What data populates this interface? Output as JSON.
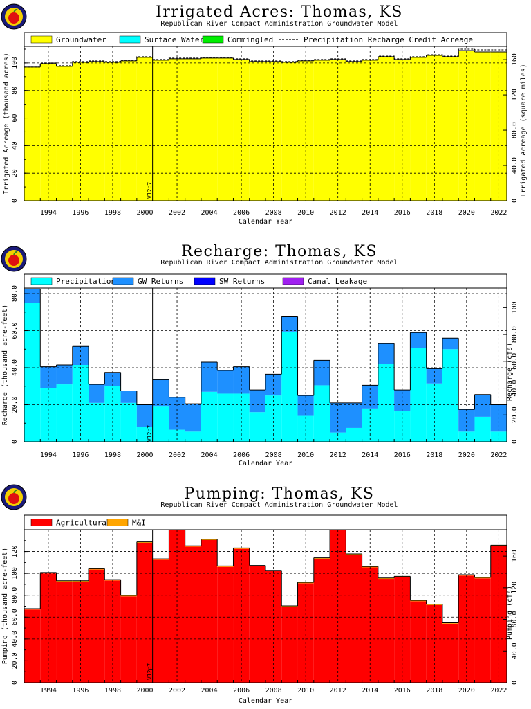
{
  "chart_data": [
    {
      "id": "irrigated",
      "type": "bar",
      "stacked": true,
      "title": "Irrigated Acres: Thomas, KS",
      "subtitle": "Republican River Compact Administration Groundwater Model",
      "xlabel": "Calendar Year",
      "ylabel": "Irrigated Acreage (thousand acres)",
      "ylabel_right": "Irrigated Acreage (square miles)",
      "x_start": 1993,
      "x_tick_labels": [
        "1994",
        "1996",
        "1998",
        "2000",
        "2002",
        "2004",
        "2006",
        "2008",
        "2010",
        "2012",
        "2014",
        "2016",
        "2018",
        "2020",
        "2022"
      ],
      "ylim": [
        0,
        112
      ],
      "y_ticks": [
        0,
        20,
        40,
        60,
        80,
        100
      ],
      "y_tick_labels": [
        "0",
        "20",
        "40",
        "60",
        "80",
        "100"
      ],
      "right_scale": 1.5625,
      "right_ticks": [
        0,
        40,
        80,
        120,
        160
      ],
      "right_tick_labels": [
        "0",
        "40.0",
        "80.0",
        "120",
        "160"
      ],
      "vline": {
        "x": 2001,
        "label": "V12p7"
      },
      "series": [
        {
          "name": "Groundwater",
          "color": "#ffff00",
          "values": [
            97,
            99.5,
            97.5,
            100.5,
            101,
            100.5,
            101.5,
            104,
            102,
            103,
            103,
            103.5,
            103.5,
            102.5,
            101,
            101,
            100.5,
            101.5,
            102,
            102.5,
            101,
            102,
            104.5,
            102.5,
            104,
            105.5,
            104.5,
            109,
            108,
            108
          ]
        },
        {
          "name": "Surface Water",
          "color": "#00ffff",
          "values": [
            0,
            0,
            0,
            0,
            0,
            0,
            0,
            0,
            0,
            0,
            0,
            0,
            0,
            0,
            0,
            0,
            0,
            0,
            0,
            0,
            0,
            0,
            0,
            0,
            0,
            0,
            0,
            0,
            0,
            0
          ]
        },
        {
          "name": "Commingled",
          "color": "#00ee00",
          "values": [
            0,
            0,
            0,
            0,
            0,
            0,
            0,
            0,
            0,
            0,
            0,
            0,
            0,
            0,
            0,
            0,
            0,
            0,
            0,
            0,
            0,
            0,
            0,
            0,
            0,
            0,
            0,
            0,
            0,
            0
          ]
        }
      ],
      "dashed_series": {
        "name": "Precipitation Recharge Credit Acreage",
        "values": [
          97,
          100,
          98,
          101,
          101.5,
          101,
          102,
          104.5,
          102.5,
          103.5,
          103.5,
          104,
          104,
          103,
          101.5,
          101.5,
          101,
          102,
          102.5,
          103,
          101.5,
          102.5,
          105,
          103,
          104.5,
          106,
          105,
          110,
          109.5,
          109.5
        ]
      }
    },
    {
      "id": "recharge",
      "type": "bar",
      "stacked": true,
      "title": "Recharge: Thomas, KS",
      "subtitle": "Republican River Compact Administration Groundwater Model",
      "xlabel": "Calendar Year",
      "ylabel": "Recharge (thousand acre-feet)",
      "ylabel_right": "Recharge (cfs)",
      "x_start": 1993,
      "x_tick_labels": [
        "1994",
        "1996",
        "1998",
        "2000",
        "2002",
        "2004",
        "2006",
        "2008",
        "2010",
        "2012",
        "2014",
        "2016",
        "2018",
        "2020",
        "2022"
      ],
      "ylim": [
        0,
        83
      ],
      "y_ticks": [
        0,
        20,
        40,
        60,
        80
      ],
      "y_tick_labels": [
        "0",
        "20.0",
        "40.0",
        "60.0",
        "80.0"
      ],
      "right_scale": 1.3812,
      "right_ticks": [
        0,
        20,
        40,
        60,
        80,
        100
      ],
      "right_tick_labels": [
        "0",
        "20.0",
        "40.0",
        "60.0",
        "80.0",
        "100"
      ],
      "vline": {
        "x": 2001,
        "label": "V12p7"
      },
      "series": [
        {
          "name": "Precipitation",
          "color": "#00ffff",
          "values": [
            75,
            29,
            31,
            41.5,
            21,
            30,
            21,
            8,
            19,
            6.5,
            5.5,
            27,
            26,
            26,
            16,
            25,
            59.5,
            14,
            30.5,
            5,
            7.5,
            18,
            42,
            16.5,
            50.5,
            31.5,
            50,
            5.5,
            13.5,
            5.5
          ]
        },
        {
          "name": "GW Returns",
          "color": "#1e90ff",
          "values": [
            7.5,
            11.5,
            10.5,
            10,
            10,
            7.5,
            6.5,
            12,
            14.5,
            17.5,
            15,
            16,
            12.5,
            14.5,
            12,
            11.5,
            8,
            11,
            13.5,
            16,
            13.5,
            12.5,
            11,
            11.5,
            8.5,
            8,
            6,
            12,
            12,
            14.5
          ]
        },
        {
          "name": "SW Returns",
          "color": "#0000ff",
          "values": [
            0,
            0,
            0,
            0,
            0,
            0,
            0,
            0,
            0,
            0,
            0,
            0,
            0,
            0,
            0,
            0,
            0,
            0,
            0,
            0,
            0,
            0,
            0,
            0,
            0,
            0,
            0,
            0,
            0,
            0
          ]
        },
        {
          "name": "Canal Leakage",
          "color": "#a020f0",
          "values": [
            0,
            0,
            0,
            0,
            0,
            0,
            0,
            0,
            0,
            0,
            0,
            0,
            0,
            0,
            0,
            0,
            0,
            0,
            0,
            0,
            0,
            0,
            0,
            0,
            0,
            0,
            0,
            0,
            0,
            0
          ]
        }
      ]
    },
    {
      "id": "pumping",
      "type": "bar",
      "stacked": true,
      "title": "Pumping: Thomas, KS",
      "subtitle": "Republican River Compact Administration Groundwater Model",
      "xlabel": "Calendar Year",
      "ylabel": "Pumping (thousand acre-feet)",
      "ylabel_right": "Pumping (cfs)",
      "x_start": 1993,
      "x_tick_labels": [
        "1994",
        "1996",
        "1998",
        "2000",
        "2002",
        "2004",
        "2006",
        "2008",
        "2010",
        "2012",
        "2014",
        "2016",
        "2018",
        "2020",
        "2022"
      ],
      "ylim": [
        0,
        140
      ],
      "y_ticks": [
        0,
        20,
        40,
        60,
        80,
        100,
        120
      ],
      "y_tick_labels": [
        "0",
        "20.0",
        "40.0",
        "60.0",
        "80.0",
        "100",
        "120"
      ],
      "right_scale": 1.3812,
      "right_ticks": [
        0,
        40,
        80,
        120,
        160
      ],
      "right_tick_labels": [
        "0",
        "40.0",
        "80.0",
        "120",
        "160"
      ],
      "vline": {
        "x": 2001,
        "label": "V12p7"
      },
      "series": [
        {
          "name": "Agricultural",
          "color": "#ff0000",
          "values": [
            67,
            100,
            92.5,
            92.5,
            103.5,
            93.5,
            79,
            128,
            112.5,
            139.5,
            124.5,
            130.5,
            106,
            122.5,
            106.5,
            102,
            69.5,
            91,
            113.5,
            139.5,
            117,
            105.5,
            95,
            96.5,
            74.5,
            71,
            54,
            98,
            95.5,
            125
          ]
        },
        {
          "name": "M&I",
          "color": "#ffa500",
          "values": [
            0.8,
            0.8,
            0.8,
            0.8,
            0.8,
            0.8,
            0.8,
            0.8,
            0.8,
            0.8,
            0.8,
            0.8,
            0.8,
            0.8,
            0.8,
            0.8,
            0.8,
            0.8,
            0.8,
            0.8,
            0.8,
            0.8,
            0.8,
            0.8,
            0.8,
            0.8,
            0.8,
            0.8,
            0.8,
            0.8
          ]
        }
      ]
    }
  ]
}
